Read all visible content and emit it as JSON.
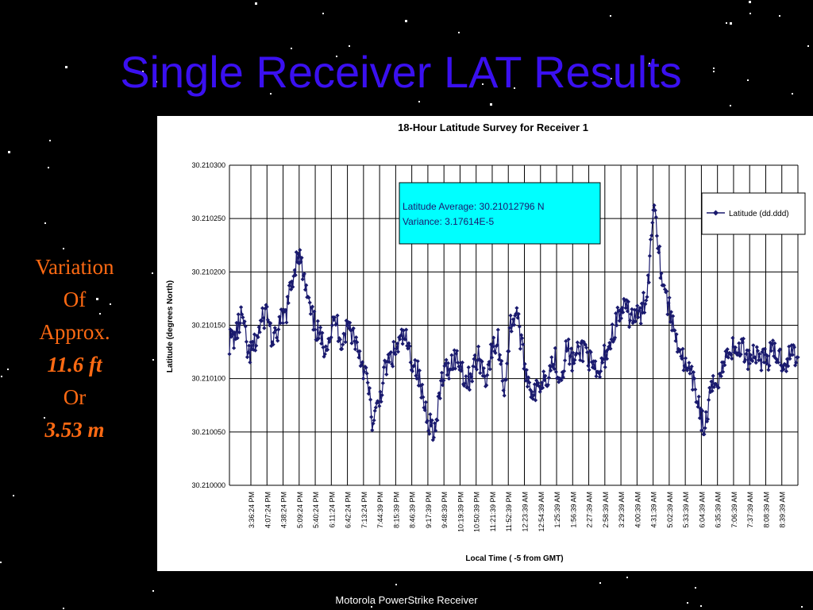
{
  "slide": {
    "title": "Single Receiver LAT Results",
    "side_text": [
      "Variation",
      "Of",
      "Approx.",
      "11.6 ft",
      "Or",
      "3.53 m"
    ],
    "footer": "Motorola PowerStrike Receiver"
  },
  "colors": {
    "title": "#3a10f0",
    "side_text": "#ff6a13",
    "series": "#1a1a6e",
    "annotation_bg": "#00ffff"
  },
  "chart_data": {
    "type": "line",
    "title": "18-Hour Latitude Survey for Receiver 1",
    "xlabel": "Local Time ( -5 from GMT)",
    "ylabel": "Latitude (degrees North)",
    "ylim": [
      30.21,
      30.2103
    ],
    "yticks": [
      "30.210300",
      "30.210250",
      "30.210200",
      "30.210150",
      "30.210100",
      "30.210050",
      "30.210000"
    ],
    "x_ticks": [
      "3:36:24 PM",
      "4:07:24 PM",
      "4:38:24 PM",
      "5:09:24 PM",
      "5:40:24 PM",
      "6:11:24 PM",
      "6:42:24 PM",
      "7:13:24 PM",
      "7:44:39 PM",
      "8:15:39 PM",
      "8:46:39 PM",
      "9:17:39 PM",
      "9:48:39 PM",
      "10:19:39 PM",
      "10:50:39 PM",
      "11:21:39 PM",
      "11:52:39 PM",
      "12:23:39 AM",
      "12:54:39 AM",
      "1:25:39 AM",
      "1:56:39 AM",
      "2:27:39 AM",
      "2:58:39 AM",
      "3:29:39 AM",
      "4:00:39 AM",
      "4:31:39 AM",
      "5:02:39 AM",
      "5:33:39 AM",
      "6:04:39 AM",
      "6:35:39 AM",
      "7:06:39 AM",
      "7:37:39 AM",
      "8:08:39 AM",
      "8:39:39 AM"
    ],
    "grid": true,
    "legend": {
      "placement": "right",
      "entries": [
        "Latitude (dd.ddd)"
      ]
    },
    "annotation": [
      "Latitude Average: 30.21012796 N",
      "Variance: 3.17614E-5"
    ],
    "series": [
      {
        "name": "Latitude (dd.ddd)",
        "profile": [
          [
            0,
            30.210135
          ],
          [
            1,
            30.21014
          ],
          [
            2,
            30.21016
          ],
          [
            3,
            30.21012
          ],
          [
            4,
            30.21013
          ],
          [
            5,
            30.21015
          ],
          [
            6,
            30.210165
          ],
          [
            7,
            30.21013
          ],
          [
            8,
            30.21015
          ],
          [
            9,
            30.21016
          ],
          [
            10,
            30.21019
          ],
          [
            11,
            30.210222
          ],
          [
            12,
            30.21019
          ],
          [
            13,
            30.21016
          ],
          [
            14,
            30.210145
          ],
          [
            15,
            30.21013
          ],
          [
            16,
            30.21014
          ],
          [
            17,
            30.210155
          ],
          [
            18,
            30.210135
          ],
          [
            19,
            30.21015
          ],
          [
            20,
            30.21014
          ],
          [
            21,
            30.21012
          ],
          [
            22,
            30.2101
          ],
          [
            23,
            30.210055
          ],
          [
            24,
            30.21008
          ],
          [
            25,
            30.21011
          ],
          [
            26,
            30.21012
          ],
          [
            27,
            30.21013
          ],
          [
            28,
            30.21014
          ],
          [
            29,
            30.21012
          ],
          [
            30,
            30.21011
          ],
          [
            31,
            30.21008
          ],
          [
            32,
            30.21006
          ],
          [
            33,
            30.21005
          ],
          [
            34,
            30.2101
          ],
          [
            35,
            30.21011
          ],
          [
            36,
            30.21012
          ],
          [
            37,
            30.210115
          ],
          [
            38,
            30.210095
          ],
          [
            39,
            30.21011
          ],
          [
            40,
            30.21012
          ],
          [
            41,
            30.2101
          ],
          [
            42,
            30.210125
          ],
          [
            43,
            30.210135
          ],
          [
            44,
            30.21009
          ],
          [
            45,
            30.21015
          ],
          [
            46,
            30.210165
          ],
          [
            47,
            30.21012
          ],
          [
            48,
            30.210095
          ],
          [
            49,
            30.210085
          ],
          [
            50,
            30.2101
          ],
          [
            51,
            30.210105
          ],
          [
            52,
            30.21012
          ],
          [
            53,
            30.2101
          ],
          [
            54,
            30.21013
          ],
          [
            55,
            30.210115
          ],
          [
            56,
            30.210125
          ],
          [
            57,
            30.21013
          ],
          [
            58,
            30.21011
          ],
          [
            59,
            30.2101
          ],
          [
            60,
            30.21012
          ],
          [
            61,
            30.210135
          ],
          [
            62,
            30.210155
          ],
          [
            63,
            30.210165
          ],
          [
            64,
            30.21016
          ],
          [
            65,
            30.210158
          ],
          [
            66,
            30.21016
          ],
          [
            67,
            30.21019
          ],
          [
            68,
            30.210272
          ],
          [
            69,
            30.210205
          ],
          [
            70,
            30.210175
          ],
          [
            71,
            30.21015
          ],
          [
            72,
            30.21013
          ],
          [
            73,
            30.21011
          ],
          [
            74,
            30.2101
          ],
          [
            75,
            30.21008
          ],
          [
            76,
            30.21005
          ],
          [
            77,
            30.210085
          ],
          [
            78,
            30.2101
          ],
          [
            79,
            30.21011
          ],
          [
            80,
            30.21013
          ],
          [
            81,
            30.210125
          ],
          [
            82,
            30.21013
          ],
          [
            83,
            30.21012
          ],
          [
            84,
            30.210125
          ],
          [
            85,
            30.21012
          ],
          [
            86,
            30.210118
          ],
          [
            87,
            30.210125
          ],
          [
            88,
            30.21012
          ],
          [
            89,
            30.210115
          ],
          [
            90,
            30.210125
          ],
          [
            91,
            30.21012
          ]
        ]
      }
    ]
  }
}
